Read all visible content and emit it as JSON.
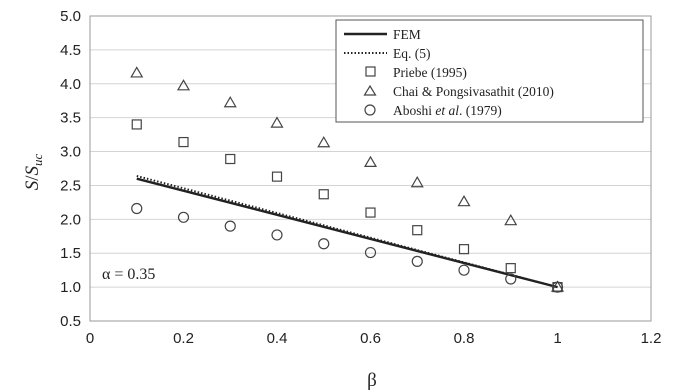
{
  "chart_data": {
    "type": "scatter",
    "xlabel": "β",
    "ylabel_main": "S",
    "ylabel_sep": "/",
    "ylabel_den": "S",
    "ylabel_sub": "uc",
    "xlim": [
      0,
      1.2
    ],
    "ylim": [
      0.5,
      5.0
    ],
    "xticks": [
      "0",
      "0.2",
      "0.4",
      "0.6",
      "0.8",
      "1",
      "1.2"
    ],
    "yticks": [
      "0.5",
      "1.0",
      "1.5",
      "2.0",
      "2.5",
      "3.0",
      "3.5",
      "4.0",
      "4.5",
      "5.0"
    ],
    "grid": "horizontal",
    "legend_position": "top-right",
    "annotation": "α = 0.35",
    "series": [
      {
        "name": "FEM",
        "style": "solid-line",
        "color": "#222222",
        "x": [
          0.1,
          1.0
        ],
        "y": [
          2.6,
          1.0
        ]
      },
      {
        "name": "Eq. (5)",
        "style": "dotted-line",
        "color": "#222222",
        "x": [
          0.1,
          1.0
        ],
        "y": [
          2.64,
          1.0
        ]
      },
      {
        "name": "Priebe (1995)",
        "style": "square",
        "color": "#444444",
        "x": [
          0.1,
          0.2,
          0.3,
          0.4,
          0.5,
          0.6,
          0.7,
          0.8,
          0.9,
          1.0
        ],
        "y": [
          3.4,
          3.14,
          2.89,
          2.63,
          2.37,
          2.1,
          1.84,
          1.56,
          1.28,
          1.0
        ]
      },
      {
        "name": "Chai & Pongsivasathit (2010)",
        "style": "triangle",
        "color": "#444444",
        "x": [
          0.1,
          0.2,
          0.3,
          0.4,
          0.5,
          0.6,
          0.7,
          0.8,
          0.9,
          1.0
        ],
        "y": [
          4.16,
          3.97,
          3.72,
          3.42,
          3.13,
          2.84,
          2.54,
          2.26,
          1.98,
          1.0
        ]
      },
      {
        "name": "Aboshi et al. (1979)",
        "style": "circle",
        "color": "#444444",
        "x": [
          0.1,
          0.2,
          0.3,
          0.4,
          0.5,
          0.6,
          0.7,
          0.8,
          0.9,
          1.0
        ],
        "y": [
          2.16,
          2.03,
          1.9,
          1.77,
          1.64,
          1.51,
          1.38,
          1.25,
          1.12,
          1.0
        ]
      }
    ],
    "legend_labels": {
      "fem": "FEM",
      "eq5": "Eq. (5)",
      "priebe": "Priebe (1995)",
      "chai": "Chai & Pongsivasathit (2010)",
      "aboshi_pre": "Aboshi ",
      "aboshi_it": "et al",
      "aboshi_post": ". (1979)"
    }
  }
}
